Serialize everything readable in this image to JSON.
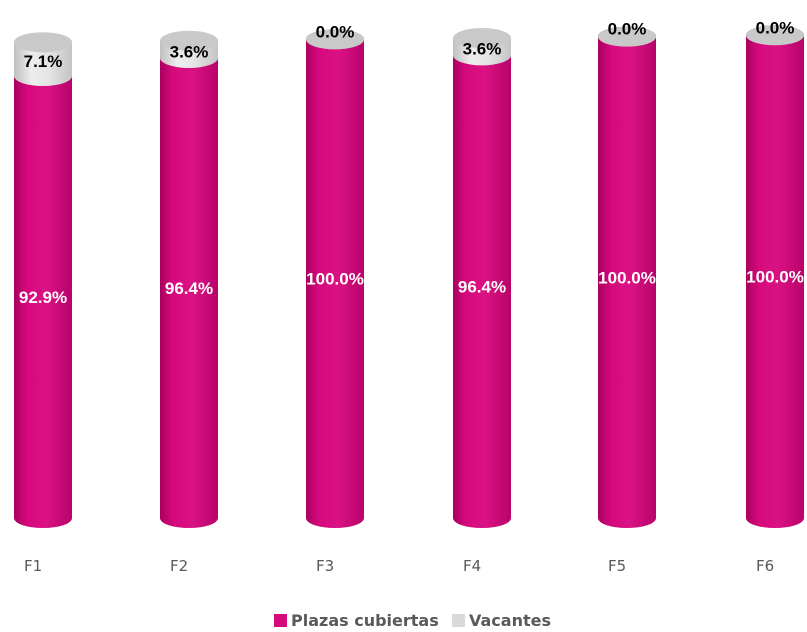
{
  "chart_data": {
    "type": "bar",
    "stacked": true,
    "percent": true,
    "shape": "cylinder",
    "categories": [
      "F1",
      "F2",
      "F3",
      "F4",
      "F5",
      "F6"
    ],
    "series": [
      {
        "name": "Plazas cubiertas",
        "values": [
          92.9,
          96.4,
          100.0,
          96.4,
          100.0,
          100.0
        ],
        "labels": [
          "92.9%",
          "96.4%",
          "100.0%",
          "96.4%",
          "100.0%",
          "100.0%"
        ],
        "color": "#D6097C"
      },
      {
        "name": "Vacantes",
        "values": [
          7.1,
          3.6,
          0.0,
          3.6,
          0.0,
          0.0
        ],
        "labels": [
          "7.1%",
          "3.6%",
          "0.0%",
          "3.6%",
          "0.0%",
          "0.0%"
        ],
        "color": "#D9D9D9"
      }
    ],
    "ylim": [
      0,
      100
    ],
    "grid": false,
    "legend_position": "bottom"
  }
}
